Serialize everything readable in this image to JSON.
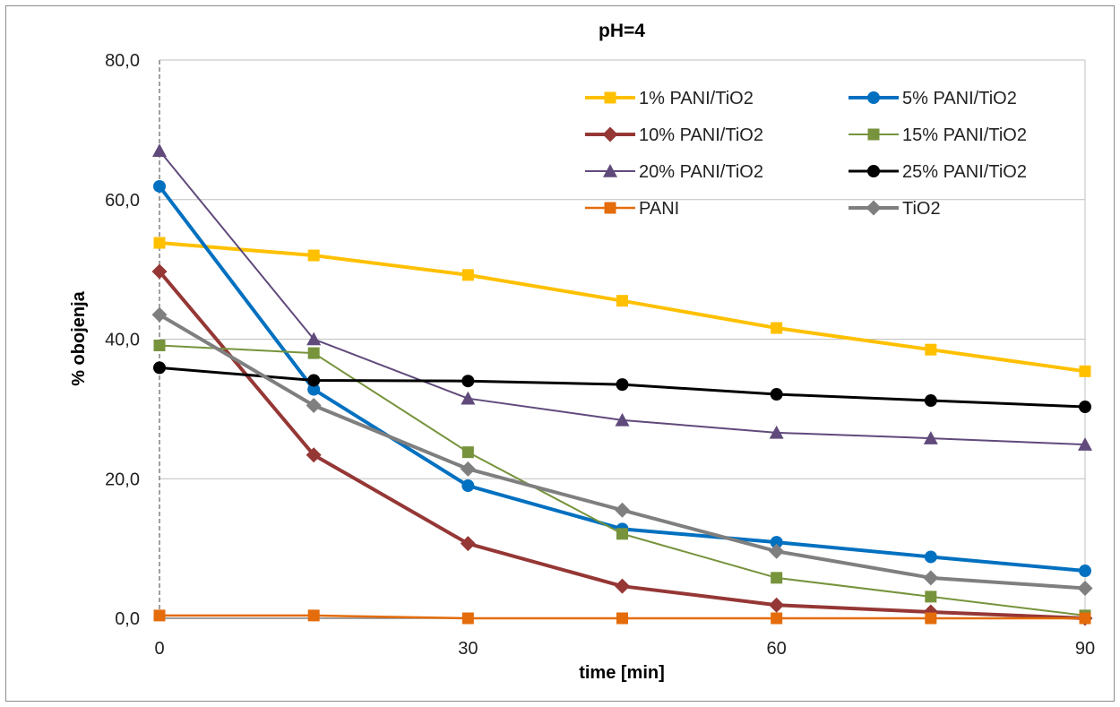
{
  "chart_data": {
    "type": "line",
    "title": "pH=4",
    "xlabel": "time [min]",
    "ylabel": "% obojenja",
    "xlim": [
      0,
      90
    ],
    "ylim": [
      0,
      80
    ],
    "x_ticks": [
      "0",
      "30",
      "60",
      "90"
    ],
    "x_tick_values": [
      0,
      30,
      60,
      90
    ],
    "y_ticks": [
      "0,0",
      "20,0",
      "40,0",
      "60,0",
      "80,0"
    ],
    "y_tick_values": [
      0,
      20,
      40,
      60,
      80
    ],
    "grid": "horizontal",
    "legend_position": "top-right",
    "x": [
      0,
      15,
      30,
      45,
      60,
      75,
      90
    ],
    "series": [
      {
        "name": "1% PANI/TiO2",
        "color": "#FFC000",
        "marker": "square",
        "values": [
          53.8,
          52.0,
          49.2,
          45.5,
          41.6,
          38.5,
          35.4
        ]
      },
      {
        "name": "5% PANI/TiO2",
        "color": "#0070C0",
        "marker": "circle",
        "values": [
          61.9,
          32.8,
          19.0,
          12.8,
          10.9,
          8.8,
          6.8
        ]
      },
      {
        "name": "10% PANI/TiO2",
        "color": "#953735",
        "marker": "diamond",
        "values": [
          49.7,
          23.4,
          10.7,
          4.6,
          1.9,
          0.9,
          0.0
        ]
      },
      {
        "name": "15% PANI/TiO2",
        "color": "#77933C",
        "marker": "square",
        "values": [
          39.1,
          38.0,
          23.8,
          12.1,
          5.8,
          3.1,
          0.4
        ]
      },
      {
        "name": "20% PANI/TiO2",
        "color": "#604A7B",
        "marker": "triangle",
        "values": [
          67.0,
          40.0,
          31.5,
          28.4,
          26.6,
          25.8,
          24.9
        ]
      },
      {
        "name": "25% PANI/TiO2",
        "color": "#000000",
        "marker": "circle",
        "values": [
          35.9,
          34.1,
          34.0,
          33.5,
          32.1,
          31.2,
          30.3
        ]
      },
      {
        "name": "PANI",
        "color": "#E46C0A",
        "marker": "square",
        "values": [
          0.4,
          0.4,
          0.0,
          0.0,
          0.0,
          0.0,
          0.0
        ]
      },
      {
        "name": "TiO2",
        "color": "#7F7F7F",
        "marker": "diamond",
        "values": [
          43.5,
          30.5,
          21.4,
          15.5,
          9.6,
          5.8,
          4.3
        ]
      }
    ]
  }
}
